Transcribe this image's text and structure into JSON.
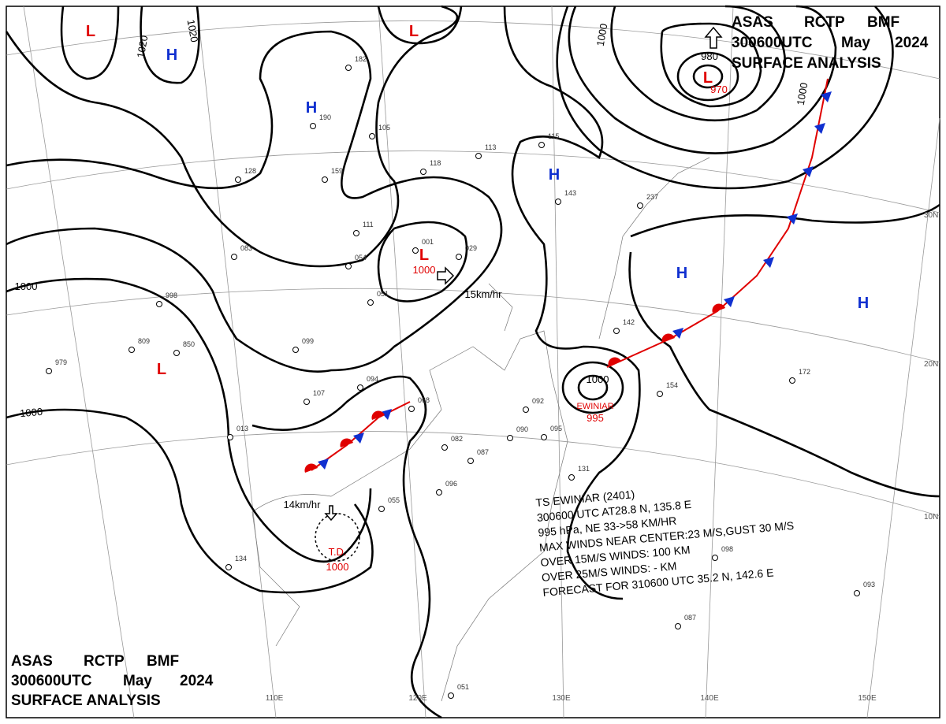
{
  "header": {
    "agency": "ASAS",
    "station": "RCTP",
    "office": "BMF",
    "time": "300600UTC",
    "month": "May",
    "year": "2024",
    "title": "SURFACE ANALYSIS"
  },
  "centers": [
    {
      "label": "L",
      "color": "#e00000"
    },
    {
      "label": "H",
      "color": "#1030d0"
    },
    {
      "label": "L",
      "color": "#e00000"
    },
    {
      "label": "H",
      "color": "#1030d0"
    },
    {
      "label": "L",
      "color": "#e00000"
    },
    {
      "label": "L",
      "color": "#e00000"
    },
    {
      "label": "H",
      "color": "#1030d0"
    },
    {
      "label": "H",
      "color": "#1030d0"
    },
    {
      "label": "H",
      "color": "#1030d0"
    },
    {
      "label": "L",
      "color": "#e00000"
    }
  ],
  "isobar_labels": [
    {
      "text": "1020",
      "color": "#000"
    },
    {
      "text": "1020",
      "color": "#000"
    },
    {
      "text": "1000",
      "color": "#000"
    },
    {
      "text": "1000",
      "color": "#000"
    },
    {
      "text": "1000",
      "color": "#e00000"
    },
    {
      "text": "1000",
      "color": "#000"
    },
    {
      "text": "1000",
      "color": "#000"
    },
    {
      "text": "980",
      "color": "#000"
    },
    {
      "text": "970",
      "color": "#e00000"
    },
    {
      "text": "1000",
      "color": "#000"
    },
    {
      "text": "995",
      "color": "#e00000"
    },
    {
      "text": "1000",
      "color": "#e00000"
    }
  ],
  "annotations": [
    {
      "text": "EWINIAR",
      "color": "#e00000"
    },
    {
      "text": "T.D.",
      "color": "#e00000"
    },
    {
      "text": "15km/hr",
      "color": "#000"
    },
    {
      "text": "14km/hr",
      "color": "#000"
    }
  ],
  "typhoon_info": [
    "TS  EWINIAR  (2401)",
    "300600 UTC  AT28.8 N, 135.8 E",
    "995 hPa, NE  33->58 KM/HR",
    "MAX WINDS NEAR CENTER:23 M/S,GUST 30 M/S",
    "OVER 15M/S WINDS: 100 KM",
    "OVER 25M/S WINDS: - KM",
    "FORECAST FOR 310600 UTC 35.2 N, 142.6 E"
  ],
  "longitudes": [
    "110E",
    "120E",
    "130E",
    "140E",
    "150E"
  ],
  "latitudes": [
    "30N",
    "20N",
    "10N"
  ],
  "stations": [
    "182",
    "190",
    "105",
    "113",
    "118",
    "159",
    "128",
    "111",
    "054",
    "001",
    "029",
    "051",
    "099",
    "094",
    "068",
    "082",
    "087",
    "096",
    "055",
    "092",
    "090",
    "095",
    "142",
    "154",
    "172",
    "237",
    "143",
    "131",
    "098",
    "093",
    "087",
    "051",
    "809",
    "850",
    "979",
    "998",
    "083",
    "013",
    "107",
    "115",
    "134"
  ]
}
